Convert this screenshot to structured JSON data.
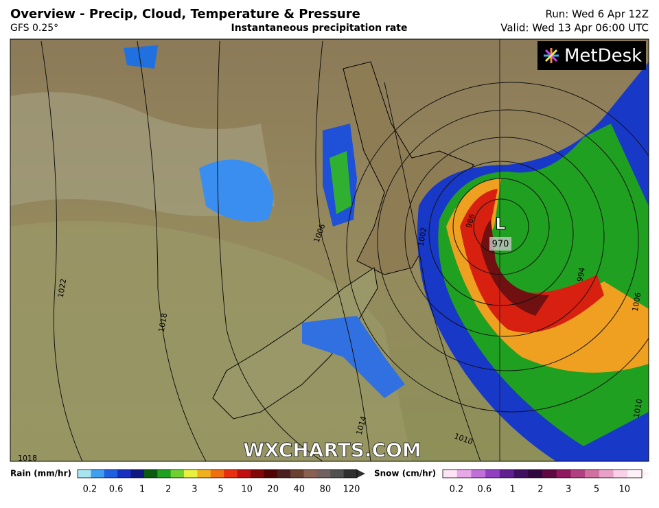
{
  "header": {
    "title": "Overview - Precip, Cloud, Temperature & Pressure",
    "model": "GFS 0.25°",
    "subtitle": "Instantaneous precipitation rate",
    "run": "Run: Wed 6 Apr 12Z",
    "valid": "Valid: Wed 13 Apr 06:00 UTC"
  },
  "brand": "MetDesk",
  "watermark": "WXCHARTS.COM",
  "map": {
    "low_symbol": "L",
    "low_pressure": "970",
    "isobar_labels": [
      "1006",
      "1002",
      "986",
      "1022",
      "1018",
      "1014",
      "1010",
      "1018",
      "994",
      "1006",
      "1010"
    ]
  },
  "legend": {
    "rain": {
      "label": "Rain (mm/hr)",
      "ticks": [
        0.2,
        0.6,
        1,
        2,
        3,
        5,
        10,
        20,
        40,
        80,
        120
      ],
      "colors": [
        "#a8e4f0",
        "#3fa0f0",
        "#2060e0",
        "#1830c0",
        "#101880",
        "#0a5a10",
        "#20a020",
        "#70d030",
        "#e8f040",
        "#f0b020",
        "#f07010",
        "#e83010",
        "#c01010",
        "#800808",
        "#500404",
        "#4a2020",
        "#6a4030",
        "#8a6050",
        "#706060",
        "#505050",
        "#303030"
      ]
    },
    "snow": {
      "label": "Snow (cm/hr)",
      "ticks": [
        0.2,
        0.6,
        1,
        2,
        3,
        5,
        10
      ],
      "colors": [
        "#fce4f4",
        "#e8a8e8",
        "#c070d8",
        "#9040c0",
        "#602090",
        "#401060",
        "#300840",
        "#600840",
        "#901860",
        "#b04080",
        "#d070a0",
        "#e8a0c8",
        "#f8d0e8",
        "#fff0f8"
      ]
    }
  }
}
